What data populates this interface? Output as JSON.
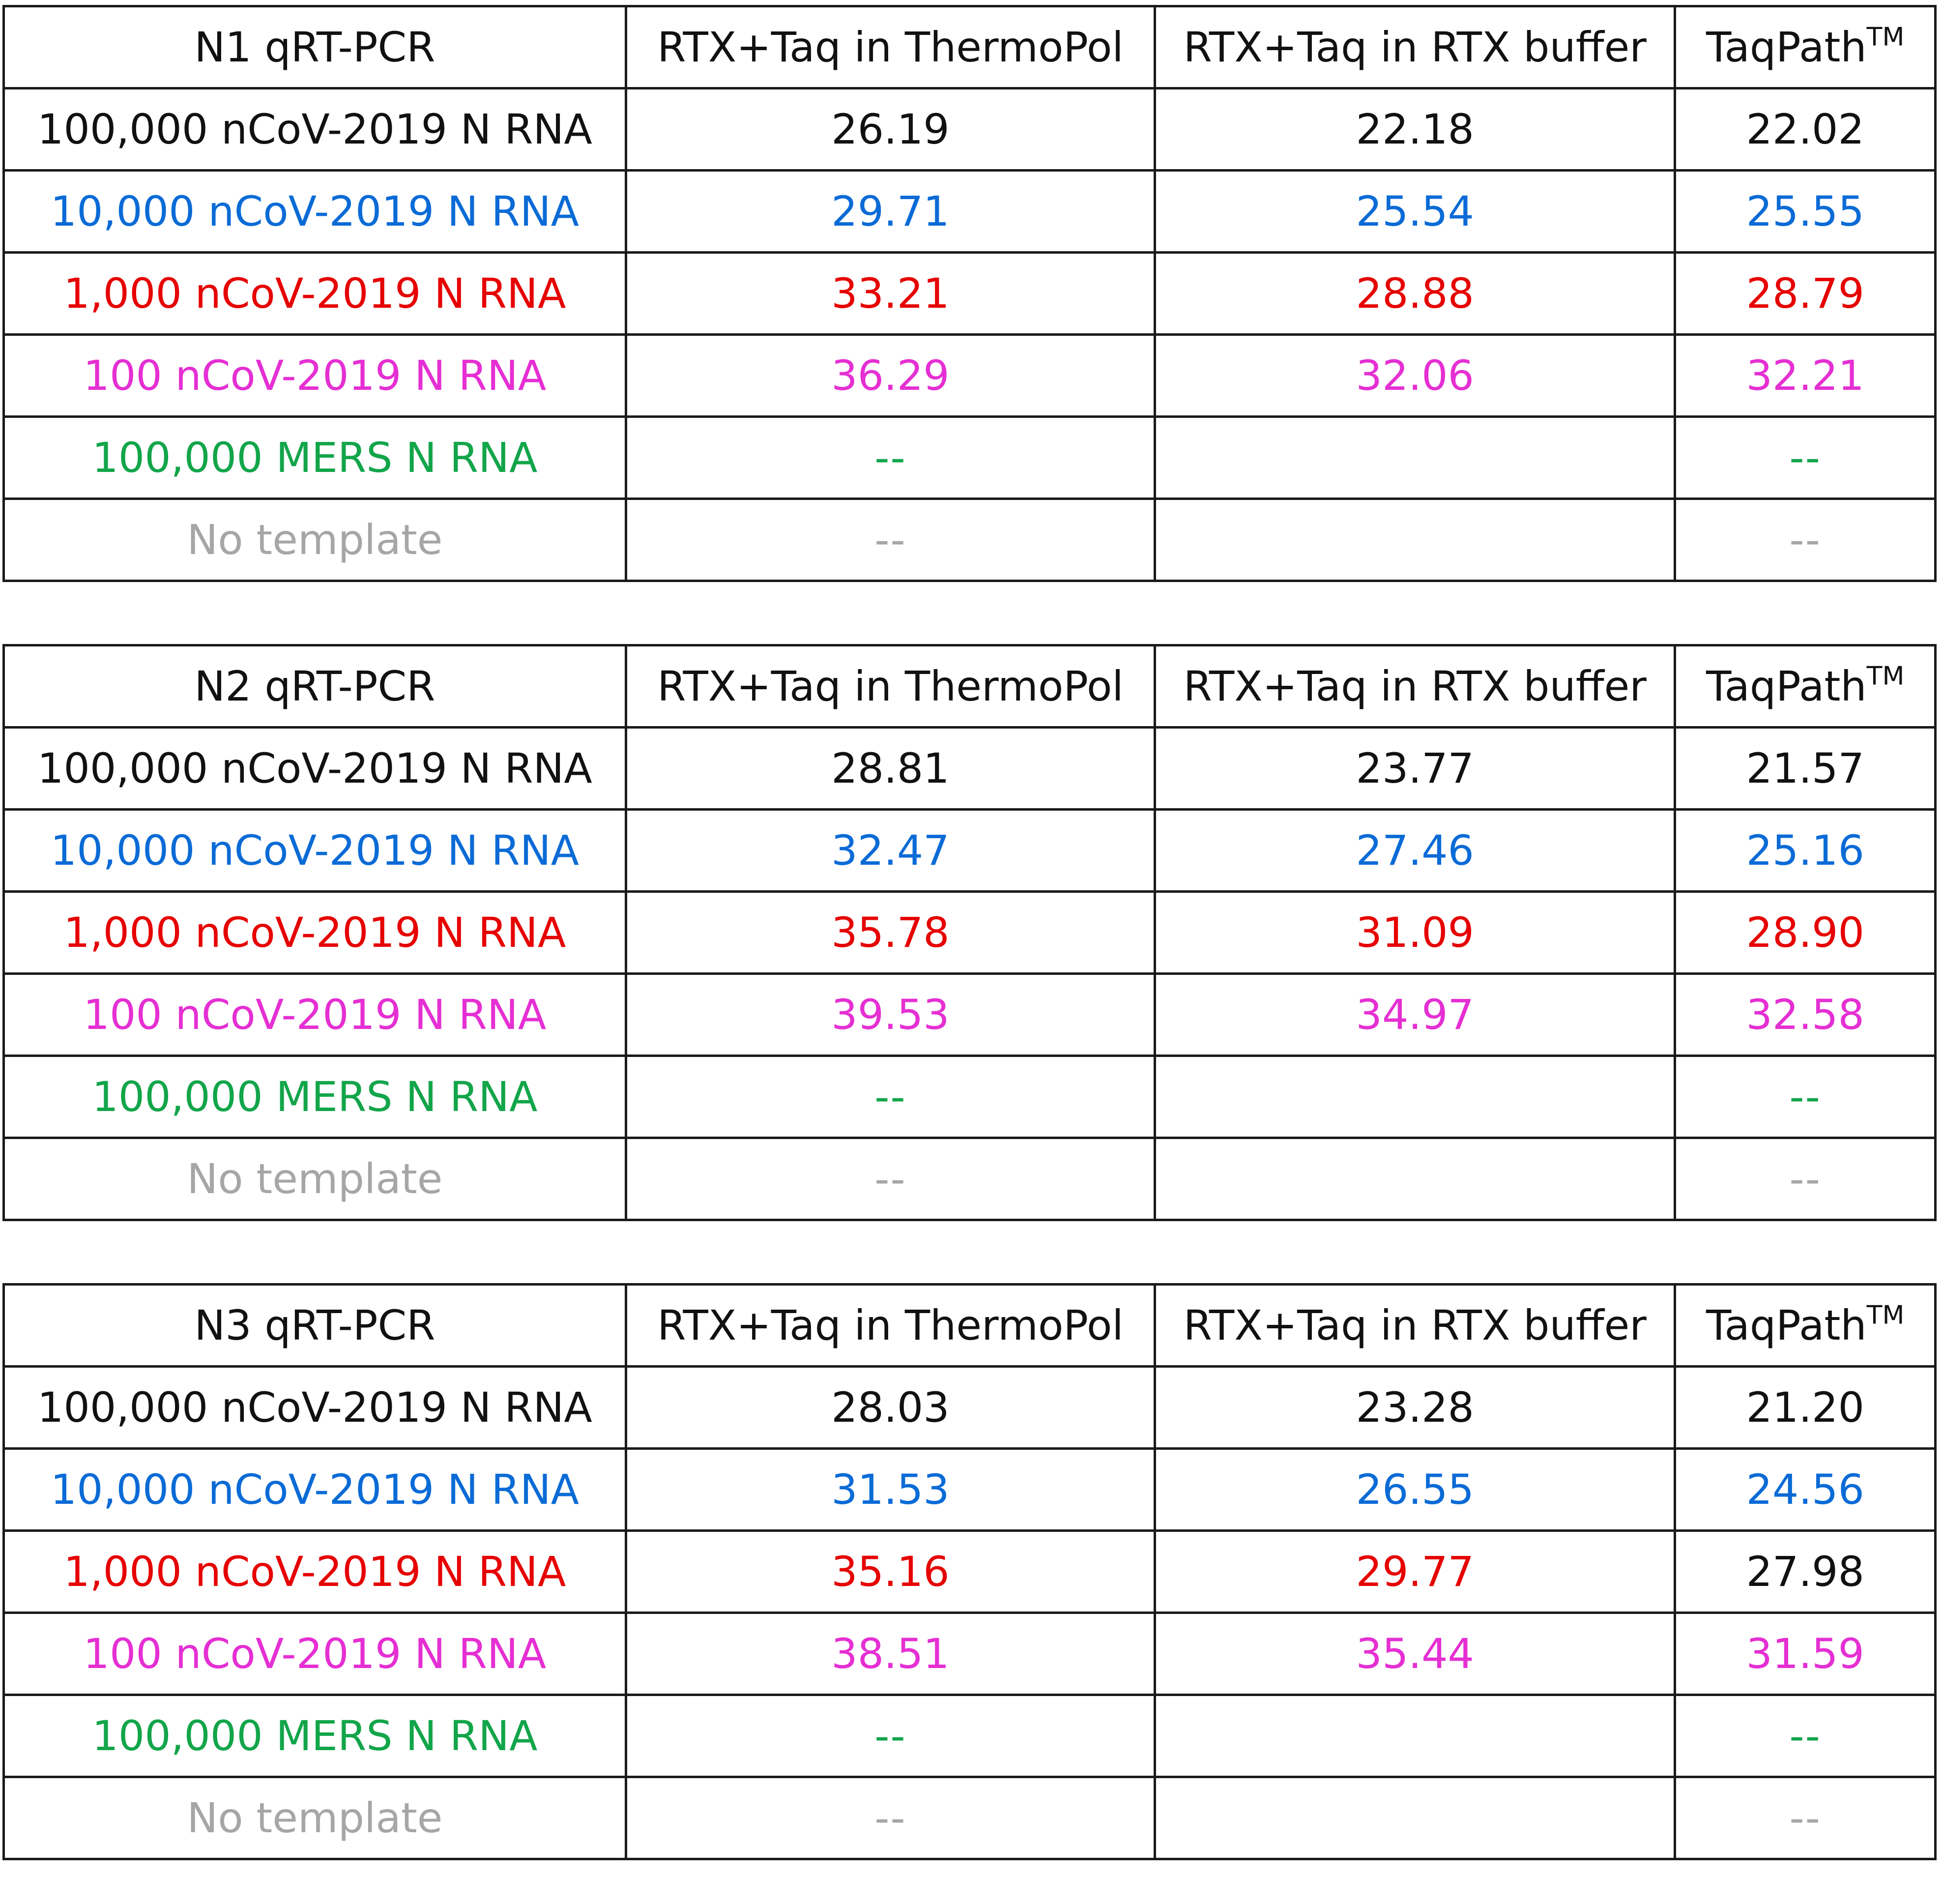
{
  "colors": {
    "black": "#111111",
    "blue": "#0b6bd6",
    "red": "#e60000",
    "magenta": "#e52fd3",
    "green": "#12a54a",
    "gray": "#a6a6a6"
  },
  "tables": [
    {
      "header": [
        "N1 qRT-PCR",
        "RTX+Taq in ThermoPol",
        "RTX+Taq in RTX buffer",
        "TaqPath"
      ],
      "tm_mark": "TM",
      "rows": [
        {
          "label": "100,000 nCoV-2019 N RNA",
          "values": [
            "26.19",
            "22.18",
            "22.02"
          ],
          "color": "black"
        },
        {
          "label": "10,000 nCoV-2019 N RNA",
          "values": [
            "29.71",
            "25.54",
            "25.55"
          ],
          "color": "blue"
        },
        {
          "label": "1,000 nCoV-2019 N RNA",
          "values": [
            "33.21",
            "28.88",
            "28.79"
          ],
          "color": "red"
        },
        {
          "label": "100 nCoV-2019 N RNA",
          "values": [
            "36.29",
            "32.06",
            "32.21"
          ],
          "color": "magenta"
        },
        {
          "label": "100,000 MERS N RNA",
          "values": [
            "--",
            "",
            "--"
          ],
          "color": "green"
        },
        {
          "label": "No template",
          "values": [
            "--",
            "",
            "--"
          ],
          "color": "gray"
        }
      ]
    },
    {
      "header": [
        "N2 qRT-PCR",
        "RTX+Taq in ThermoPol",
        "RTX+Taq in RTX buffer",
        "TaqPath"
      ],
      "tm_mark": "TM",
      "rows": [
        {
          "label": "100,000 nCoV-2019 N RNA",
          "values": [
            "28.81",
            "23.77",
            "21.57"
          ],
          "color": "black"
        },
        {
          "label": "10,000 nCoV-2019 N RNA",
          "values": [
            "32.47",
            "27.46",
            "25.16"
          ],
          "color": "blue"
        },
        {
          "label": "1,000 nCoV-2019 N RNA",
          "values": [
            "35.78",
            "31.09",
            "28.90"
          ],
          "color": "red"
        },
        {
          "label": "100 nCoV-2019 N RNA",
          "values": [
            "39.53",
            "34.97",
            "32.58"
          ],
          "color": "magenta"
        },
        {
          "label": "100,000 MERS N RNA",
          "values": [
            "--",
            "",
            "--"
          ],
          "color": "green"
        },
        {
          "label": "No template",
          "values": [
            "--",
            "",
            "--"
          ],
          "color": "gray"
        }
      ]
    },
    {
      "header": [
        "N3 qRT-PCR",
        "RTX+Taq in ThermoPol",
        "RTX+Taq in RTX buffer",
        "TaqPath"
      ],
      "tm_mark": "TM",
      "rows": [
        {
          "label": "100,000 nCoV-2019 N RNA",
          "values": [
            "28.03",
            "23.28",
            "21.20"
          ],
          "color": "black"
        },
        {
          "label": "10,000 nCoV-2019 N RNA",
          "values": [
            "31.53",
            "26.55",
            "24.56"
          ],
          "color": "blue"
        },
        {
          "label": "1,000 nCoV-2019 N RNA",
          "values": [
            "35.16",
            "29.77",
            "27.98"
          ],
          "color": "red",
          "cell_colors": [
            "red",
            "red",
            "black"
          ]
        },
        {
          "label": "100 nCoV-2019 N RNA",
          "values": [
            "38.51",
            "35.44",
            "31.59"
          ],
          "color": "magenta"
        },
        {
          "label": "100,000 MERS N RNA",
          "values": [
            "--",
            "",
            "--"
          ],
          "color": "green"
        },
        {
          "label": "No template",
          "values": [
            "--",
            "",
            "--"
          ],
          "color": "gray"
        }
      ]
    }
  ]
}
